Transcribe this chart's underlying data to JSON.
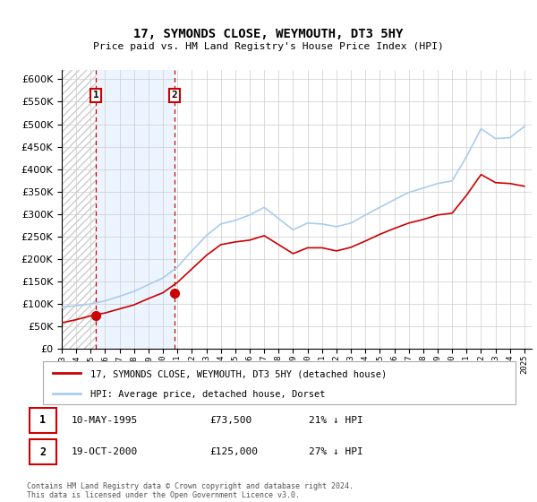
{
  "title": "17, SYMONDS CLOSE, WEYMOUTH, DT3 5HY",
  "subtitle": "Price paid vs. HM Land Registry's House Price Index (HPI)",
  "legend_line1": "17, SYMONDS CLOSE, WEYMOUTH, DT3 5HY (detached house)",
  "legend_line2": "HPI: Average price, detached house, Dorset",
  "transaction1_date": "10-MAY-1995",
  "transaction1_price": 73500,
  "transaction2_date": "19-OCT-2000",
  "transaction2_price": 125000,
  "transaction1_x": 1995.36,
  "transaction2_x": 2000.8,
  "yticks": [
    0,
    50000,
    100000,
    150000,
    200000,
    250000,
    300000,
    350000,
    400000,
    450000,
    500000,
    550000,
    600000
  ],
  "xmin": 1993.0,
  "xmax": 2025.5,
  "ymin": 0,
  "ymax": 620000,
  "grid_color": "#cccccc",
  "line_property_color": "#cc0000",
  "line_hpi_color": "#aaccee",
  "years_hpi": [
    1993,
    1994,
    1995,
    1996,
    1997,
    1998,
    1999,
    2000,
    2001,
    2002,
    2003,
    2004,
    2005,
    2006,
    2007,
    2008,
    2009,
    2010,
    2011,
    2012,
    2013,
    2014,
    2015,
    2016,
    2017,
    2018,
    2019,
    2020,
    2021,
    2022,
    2023,
    2024,
    2025
  ],
  "hpi_values": [
    93000,
    96000,
    100000,
    107000,
    117000,
    128000,
    143000,
    158000,
    182000,
    218000,
    252000,
    278000,
    286000,
    298000,
    315000,
    290000,
    265000,
    280000,
    278000,
    272000,
    280000,
    298000,
    315000,
    332000,
    348000,
    358000,
    368000,
    374000,
    428000,
    490000,
    468000,
    470000,
    495000
  ],
  "prop_years": [
    1993,
    1994,
    1995,
    1996,
    1997,
    1998,
    1999,
    2000,
    2001,
    2002,
    2003,
    2004,
    2005,
    2006,
    2007,
    2008,
    2009,
    2010,
    2011,
    2012,
    2013,
    2014,
    2015,
    2016,
    2017,
    2018,
    2019,
    2020,
    2021,
    2022,
    2023,
    2024,
    2025
  ],
  "prop_values": [
    58000,
    65000,
    73500,
    80000,
    89000,
    98000,
    112000,
    125000,
    148000,
    178000,
    208000,
    232000,
    238000,
    242000,
    252000,
    232000,
    212000,
    225000,
    225000,
    218000,
    226000,
    240000,
    255000,
    268000,
    280000,
    288000,
    298000,
    302000,
    342000,
    388000,
    370000,
    368000,
    362000
  ],
  "footer_text": "Contains HM Land Registry data © Crown copyright and database right 2024.\nThis data is licensed under the Open Government Licence v3.0."
}
